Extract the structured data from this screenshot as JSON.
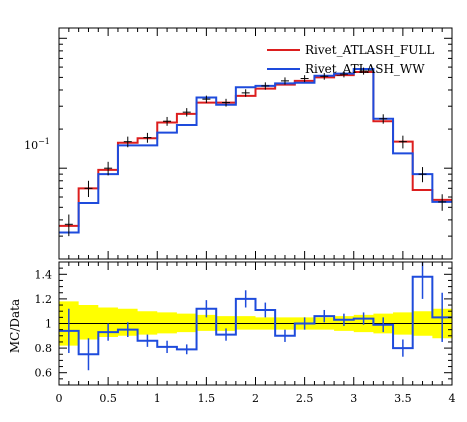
{
  "chart_data": [
    {
      "type": "line",
      "title": "",
      "xlabel": "",
      "ylabel": "",
      "y_scale": "log",
      "xlim": [
        0,
        4
      ],
      "ylim": [
        0.02,
        1.2
      ],
      "y_tick_labels": [
        {
          "value": 0.1,
          "label": "10^-1"
        }
      ],
      "legend_position": "top-right",
      "edges": [
        0,
        0.2,
        0.4,
        0.6,
        0.8,
        1.0,
        1.2,
        1.4,
        1.6,
        1.8,
        2.0,
        2.2,
        2.4,
        2.6,
        2.8,
        3.0,
        3.2,
        3.4,
        3.6,
        3.8,
        4.0
      ],
      "series": [
        {
          "name": "Rivet_ATLASH_FULL",
          "color": "#dc1e1e",
          "values": [
            0.036,
            0.07,
            0.097,
            0.157,
            0.17,
            0.225,
            0.262,
            0.32,
            0.32,
            0.36,
            0.41,
            0.44,
            0.47,
            0.5,
            0.52,
            0.55,
            0.23,
            0.16,
            0.068,
            0.057
          ]
        },
        {
          "name": "Rivet_ATLASH_WW",
          "color": "#1e4bdc",
          "values": [
            0.032,
            0.054,
            0.09,
            0.15,
            0.15,
            0.188,
            0.215,
            0.35,
            0.308,
            0.42,
            0.43,
            0.45,
            0.455,
            0.515,
            0.535,
            0.58,
            0.24,
            0.13,
            0.09,
            0.055
          ]
        }
      ],
      "data_points": {
        "values": [
          0.037,
          0.07,
          0.1,
          0.16,
          0.172,
          0.23,
          0.27,
          0.34,
          0.32,
          0.38,
          0.43,
          0.47,
          0.49,
          0.51,
          0.53,
          0.56,
          0.24,
          0.16,
          0.09,
          0.055
        ],
        "errors": [
          0.007,
          0.01,
          0.012,
          0.015,
          0.015,
          0.018,
          0.02,
          0.022,
          0.022,
          0.025,
          0.028,
          0.03,
          0.03,
          0.03,
          0.03,
          0.035,
          0.02,
          0.018,
          0.012,
          0.008
        ]
      }
    },
    {
      "type": "line",
      "title": "",
      "xlabel": "",
      "ylabel": "MC/Data",
      "xlim": [
        0,
        4
      ],
      "ylim": [
        0.5,
        1.5
      ],
      "y_ticks": [
        0.6,
        0.8,
        1,
        1.2,
        1.4
      ],
      "y_tick_labels": [
        "0.6",
        "0.8",
        "1",
        "1.2",
        "1.4"
      ],
      "x_ticks": [
        0,
        0.5,
        1,
        1.5,
        2,
        2.5,
        3,
        3.5,
        4
      ],
      "x_tick_labels": [
        "0",
        "0.5",
        "1",
        "1.5",
        "2",
        "2.5",
        "3",
        "3.5",
        "4"
      ],
      "edges": [
        0,
        0.2,
        0.4,
        0.6,
        0.8,
        1.0,
        1.2,
        1.4,
        1.6,
        1.8,
        2.0,
        2.2,
        2.4,
        2.6,
        2.8,
        3.0,
        3.2,
        3.4,
        3.6,
        3.8,
        4.0
      ],
      "uncertainty_band": {
        "color": "#ffff00",
        "upper": [
          1.18,
          1.15,
          1.13,
          1.12,
          1.1,
          1.09,
          1.08,
          1.07,
          1.06,
          1.06,
          1.05,
          1.05,
          1.05,
          1.05,
          1.06,
          1.07,
          1.08,
          1.09,
          1.1,
          1.12
        ],
        "lower": [
          0.82,
          0.87,
          0.89,
          0.9,
          0.91,
          0.92,
          0.93,
          0.94,
          0.94,
          0.95,
          0.95,
          0.95,
          0.95,
          0.95,
          0.94,
          0.93,
          0.92,
          0.91,
          0.9,
          0.88
        ]
      },
      "series": [
        {
          "name": "Rivet_ATLASH_WW",
          "color": "#1e4bdc",
          "values": [
            0.94,
            0.75,
            0.93,
            0.95,
            0.86,
            0.81,
            0.79,
            1.12,
            0.91,
            1.2,
            1.11,
            0.9,
            1.0,
            1.06,
            1.03,
            1.04,
            0.99,
            0.8,
            1.38,
            1.05
          ],
          "errors": [
            0.18,
            0.13,
            0.07,
            0.06,
            0.05,
            0.05,
            0.04,
            0.07,
            0.05,
            0.07,
            0.06,
            0.05,
            0.05,
            0.05,
            0.05,
            0.05,
            0.06,
            0.07,
            0.18,
            0.2
          ]
        }
      ],
      "reference_line": {
        "y": 1,
        "color": "#000000"
      }
    }
  ]
}
